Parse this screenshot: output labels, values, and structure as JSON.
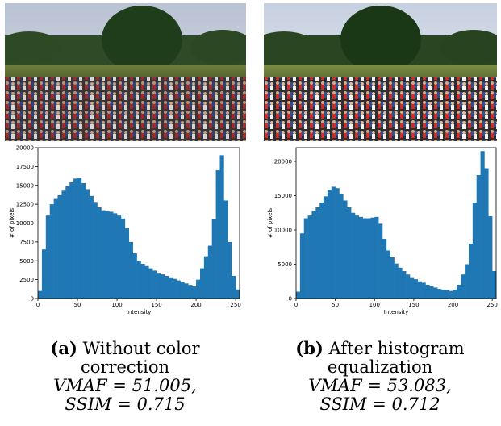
{
  "figure": {
    "panels": [
      {
        "id": "a",
        "caption_tag": "(a)",
        "caption_line1": "Without color",
        "caption_line2": "correction",
        "metric1": "VMAF = 51.005,",
        "metric2": "SSIM = 0.715",
        "photo_alt": "crowd of runners in a park (original)"
      },
      {
        "id": "b",
        "caption_tag": "(b)",
        "caption_line1": "After histogram",
        "caption_line2": "equalization",
        "metric1": "VMAF = 53.083,",
        "metric2": "SSIM = 0.712",
        "photo_alt": "crowd of runners in a park (equalized)"
      }
    ]
  },
  "chart_data": [
    {
      "type": "bar",
      "xlabel": "Intensity",
      "ylabel": "# of pixels",
      "xlim": [
        0,
        255
      ],
      "ylim": [
        0,
        20000
      ],
      "xticks": [
        0,
        50,
        100,
        150,
        200,
        250
      ],
      "yticks": [
        0,
        2500,
        5000,
        7500,
        10000,
        12500,
        15000,
        17500,
        20000
      ],
      "color": "#1f77b4",
      "x": [
        0,
        5,
        10,
        15,
        20,
        25,
        30,
        35,
        40,
        45,
        50,
        55,
        60,
        65,
        70,
        75,
        80,
        85,
        90,
        95,
        100,
        105,
        110,
        115,
        120,
        125,
        130,
        135,
        140,
        145,
        150,
        155,
        160,
        165,
        170,
        175,
        180,
        185,
        190,
        195,
        200,
        205,
        210,
        215,
        220,
        225,
        230,
        235,
        240,
        245,
        250,
        255
      ],
      "values": [
        1000,
        6500,
        11000,
        12500,
        13200,
        13700,
        14300,
        14900,
        15400,
        15900,
        16000,
        15300,
        14500,
        13600,
        12800,
        12100,
        11700,
        11600,
        11500,
        11300,
        11000,
        10600,
        9300,
        7500,
        6000,
        5000,
        4600,
        4300,
        4000,
        3700,
        3400,
        3200,
        3000,
        2800,
        2600,
        2400,
        2200,
        2000,
        1800,
        1600,
        2500,
        4000,
        5600,
        7000,
        10500,
        17000,
        19000,
        13000,
        7500,
        3000,
        1200,
        200
      ]
    },
    {
      "type": "bar",
      "xlabel": "Intensity",
      "ylabel": "# of pixels",
      "xlim": [
        0,
        255
      ],
      "ylim": [
        0,
        22000
      ],
      "xticks": [
        0,
        50,
        100,
        150,
        200,
        250
      ],
      "yticks": [
        0,
        5000,
        10000,
        15000,
        20000
      ],
      "color": "#1f77b4",
      "x": [
        0,
        5,
        10,
        15,
        20,
        25,
        30,
        35,
        40,
        45,
        50,
        55,
        60,
        65,
        70,
        75,
        80,
        85,
        90,
        95,
        100,
        105,
        110,
        115,
        120,
        125,
        130,
        135,
        140,
        145,
        150,
        155,
        160,
        165,
        170,
        175,
        180,
        185,
        190,
        195,
        200,
        205,
        210,
        215,
        220,
        225,
        230,
        235,
        240,
        245,
        250,
        255
      ],
      "values": [
        1000,
        9500,
        11700,
        12100,
        12800,
        13300,
        14000,
        14900,
        15800,
        16300,
        16100,
        15300,
        14300,
        13300,
        12500,
        12100,
        11900,
        11700,
        11700,
        11800,
        11900,
        10900,
        8700,
        7000,
        6000,
        5100,
        4500,
        4000,
        3500,
        3100,
        2800,
        2500,
        2300,
        2000,
        1800,
        1600,
        1400,
        1300,
        1200,
        1100,
        1300,
        2000,
        3500,
        5000,
        8000,
        14000,
        18000,
        21500,
        19000,
        12000,
        4000,
        500
      ]
    }
  ]
}
